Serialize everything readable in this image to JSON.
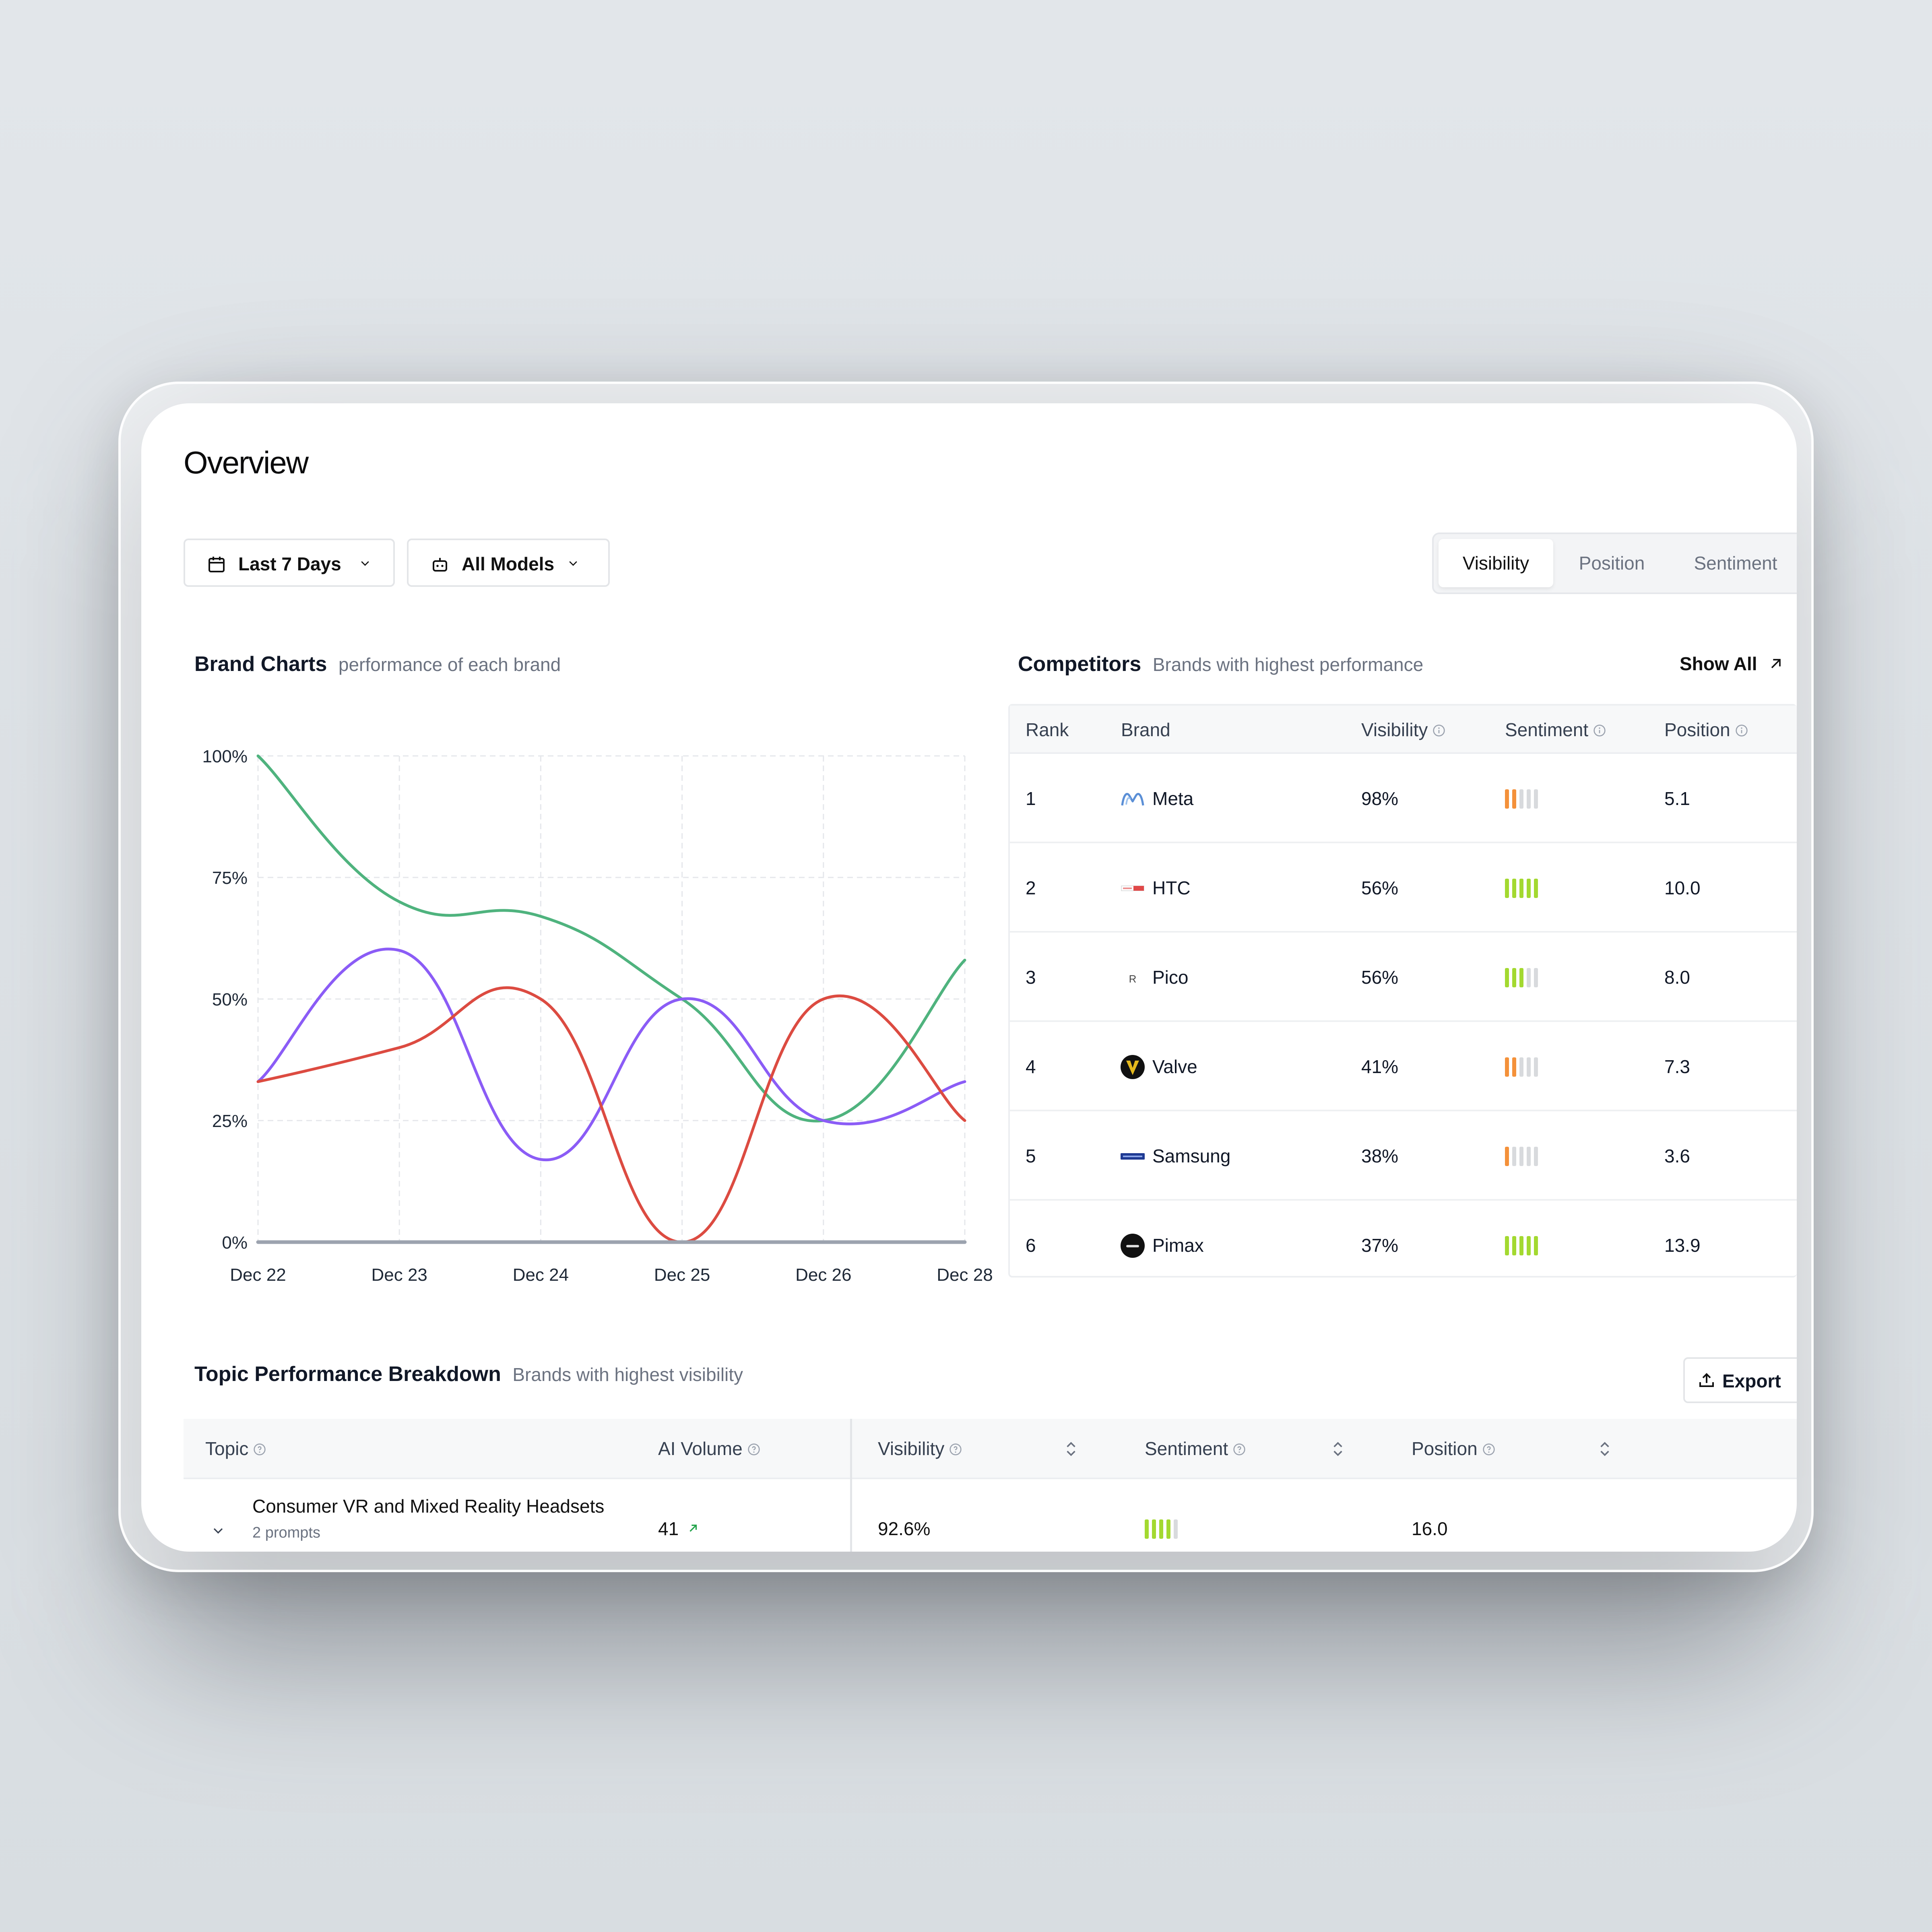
{
  "page": {
    "title": "Overview"
  },
  "filters": {
    "date_range": "Last 7 Days",
    "models": "All Models"
  },
  "metric_tabs": {
    "items": [
      "Visibility",
      "Position",
      "Sentiment"
    ],
    "active": "Visibility"
  },
  "brand_charts": {
    "title": "Brand Charts",
    "subtitle": "performance of each brand"
  },
  "chart_data": {
    "type": "line",
    "x": [
      "Dec 22",
      "Dec 23",
      "Dec 24",
      "Dec 25",
      "Dec 26",
      "Dec 28"
    ],
    "y_ticks": [
      "100%",
      "75%",
      "50%",
      "25%",
      "0%"
    ],
    "ylim": [
      0,
      100
    ],
    "grid": true,
    "series": [
      {
        "color": "#4fb37e",
        "values": [
          100,
          70,
          67,
          50,
          25,
          58
        ]
      },
      {
        "color": "#8b5cf6",
        "values": [
          33,
          60,
          17,
          50,
          25,
          33
        ]
      },
      {
        "color": "#dc4b41",
        "values": [
          33,
          40,
          50,
          0,
          50,
          25
        ]
      },
      {
        "color": "#9ca3af",
        "values": [
          0,
          0,
          0,
          0,
          0,
          0
        ]
      }
    ]
  },
  "competitors": {
    "title": "Competitors",
    "subtitle": "Brands with highest performance",
    "show_all": "Show All",
    "columns": [
      "Rank",
      "Brand",
      "Visibility",
      "Sentiment",
      "Position"
    ],
    "rows": [
      {
        "rank": "1",
        "brand": "Meta",
        "logo": "meta-logo",
        "visibility": "98%",
        "sentiment_level": 2,
        "sentiment_color": "#f4913a",
        "position": "5.1"
      },
      {
        "rank": "2",
        "brand": "HTC",
        "logo": "htc-logo",
        "visibility": "56%",
        "sentiment_level": 5,
        "sentiment_color": "#a3d930",
        "position": "10.0"
      },
      {
        "rank": "3",
        "brand": "Pico",
        "logo": "pico-logo",
        "visibility": "56%",
        "sentiment_level": 3,
        "sentiment_color": "#a3d930",
        "position": "8.0"
      },
      {
        "rank": "4",
        "brand": "Valve",
        "logo": "valve-logo",
        "visibility": "41%",
        "sentiment_level": 2,
        "sentiment_color": "#f4913a",
        "position": "7.3"
      },
      {
        "rank": "5",
        "brand": "Samsung",
        "logo": "samsung-logo",
        "visibility": "38%",
        "sentiment_level": 1,
        "sentiment_color": "#f4913a",
        "position": "3.6"
      },
      {
        "rank": "6",
        "brand": "Pimax",
        "logo": "pimax-logo",
        "visibility": "37%",
        "sentiment_level": 5,
        "sentiment_color": "#a3d930",
        "position": "13.9"
      }
    ]
  },
  "topic_breakdown": {
    "title": "Topic Performance Breakdown",
    "subtitle": "Brands with highest visibility",
    "export_label": "Export",
    "columns": [
      "Topic",
      "AI Volume",
      "Visibility",
      "Sentiment",
      "Position"
    ],
    "rows": [
      {
        "topic": "Consumer VR and Mixed Reality Headsets",
        "prompts": "2 prompts",
        "ai_volume": "41",
        "visibility": "92.6%",
        "sentiment_level": 4,
        "sentiment_color": "#a3d930",
        "position": "16.0"
      }
    ]
  }
}
